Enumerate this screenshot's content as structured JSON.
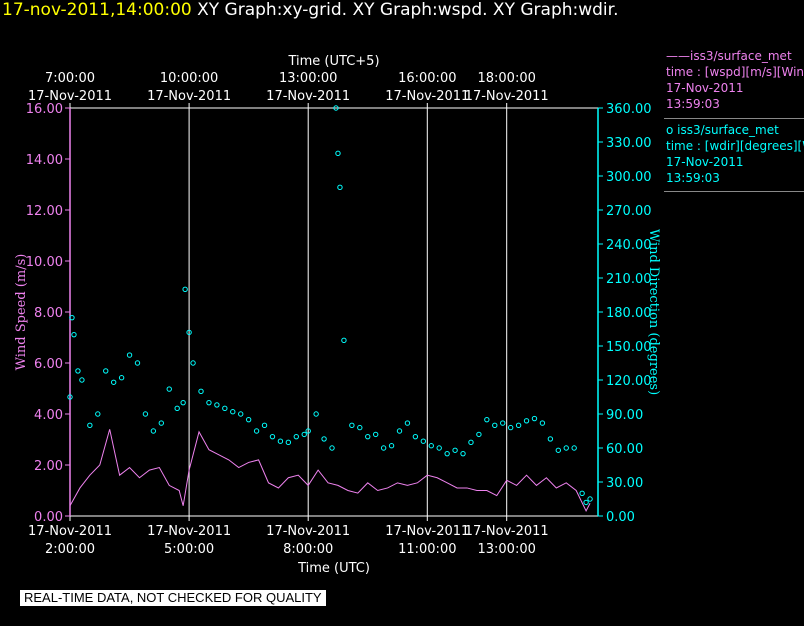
{
  "header": {
    "timestamp": "17-nov-2011,14:00:00",
    "graphs": "XY Graph:xy-grid.  XY Graph:wspd.  XY Graph:wdir."
  },
  "legend": {
    "wspd": {
      "symbol": "——",
      "name": "iss3/surface_met",
      "variable": "time : [wspd][m/s][Wind",
      "date": "17-Nov-2011",
      "time": "13:59:03"
    },
    "wdir": {
      "symbol": "o",
      "name": "iss3/surface_met",
      "variable": "time : [wdir][degrees][W",
      "date": "17-Nov-2011",
      "time": "13:59:03"
    }
  },
  "notice": "REAL-TIME DATA, NOT CHECKED FOR QUALITY",
  "colors": {
    "wspd": "#ee82ee",
    "wdir": "#00ffff",
    "grid": "#ffffff",
    "background": "#000000"
  },
  "chart_data": {
    "type": "line",
    "grid": true,
    "x_unit": "hours UTC on 17-Nov-2011",
    "xlim": [
      2.0,
      15.3
    ],
    "xlabel_bottom": "Time (UTC)",
    "xlabel_top": "Time (UTC+5)",
    "bottom_ticks": [
      {
        "x": 2,
        "date": "17-Nov-2011",
        "time": "2:00:00"
      },
      {
        "x": 5,
        "date": "17-Nov-2011",
        "time": "5:00:00"
      },
      {
        "x": 8,
        "date": "17-Nov-2011",
        "time": "8:00:00"
      },
      {
        "x": 11,
        "date": "17-Nov-2011",
        "time": "11:00:00"
      },
      {
        "x": 13,
        "date": "17-Nov-2011",
        "time": "13:00:00"
      }
    ],
    "top_ticks": [
      {
        "x": 2,
        "time": "7:00:00",
        "date": "17-Nov-2011"
      },
      {
        "x": 5,
        "time": "10:00:00",
        "date": "17-Nov-2011"
      },
      {
        "x": 8,
        "time": "13:00:00",
        "date": "17-Nov-2011"
      },
      {
        "x": 11,
        "time": "16:00:00",
        "date": "17-Nov-2011"
      },
      {
        "x": 13,
        "time": "18:00:00",
        "date": "17-Nov-2011"
      }
    ],
    "y_left": {
      "label": "Wind Speed (m/s)",
      "lim": [
        0,
        16
      ],
      "ticks": [
        "0.00",
        "2.00",
        "4.00",
        "6.00",
        "8.00",
        "10.00",
        "12.00",
        "14.00",
        "16.00"
      ]
    },
    "y_right": {
      "label": "Wind Direction (degrees)",
      "lim": [
        0,
        360
      ],
      "ticks": [
        "0.00",
        "30.00",
        "60.00",
        "90.00",
        "120.00",
        "150.00",
        "180.00",
        "210.00",
        "240.00",
        "270.00",
        "300.00",
        "330.00",
        "360.00"
      ]
    },
    "series": [
      {
        "id": "wspd",
        "axis": "left",
        "style": "line",
        "x": [
          2.0,
          2.25,
          2.5,
          2.75,
          3.0,
          3.25,
          3.5,
          3.75,
          4.0,
          4.25,
          4.5,
          4.75,
          4.85,
          5.0,
          5.25,
          5.5,
          5.75,
          6.0,
          6.25,
          6.5,
          6.75,
          7.0,
          7.25,
          7.5,
          7.75,
          8.0,
          8.25,
          8.5,
          8.75,
          9.0,
          9.25,
          9.5,
          9.75,
          10.0,
          10.25,
          10.5,
          10.75,
          11.0,
          11.25,
          11.5,
          11.75,
          12.0,
          12.25,
          12.5,
          12.75,
          13.0,
          13.25,
          13.5,
          13.75,
          14.0,
          14.25,
          14.5,
          14.75,
          15.0,
          15.1
        ],
        "y": [
          0.4,
          1.1,
          1.6,
          2.0,
          3.4,
          1.6,
          1.9,
          1.5,
          1.8,
          1.9,
          1.2,
          1.0,
          0.4,
          1.8,
          3.3,
          2.6,
          2.4,
          2.2,
          1.9,
          2.1,
          2.2,
          1.3,
          1.1,
          1.5,
          1.6,
          1.2,
          1.8,
          1.3,
          1.2,
          1.0,
          0.9,
          1.3,
          1.0,
          1.1,
          1.3,
          1.2,
          1.3,
          1.6,
          1.5,
          1.3,
          1.1,
          1.1,
          1.0,
          1.0,
          0.8,
          1.4,
          1.2,
          1.6,
          1.2,
          1.5,
          1.1,
          1.3,
          1.0,
          0.2,
          0.5
        ]
      },
      {
        "id": "wdir",
        "axis": "right",
        "style": "scatter",
        "x": [
          2.0,
          2.05,
          2.1,
          2.2,
          2.3,
          2.5,
          2.7,
          2.9,
          3.1,
          3.3,
          3.5,
          3.7,
          3.9,
          4.1,
          4.3,
          4.5,
          4.7,
          4.85,
          4.9,
          5.0,
          5.1,
          5.3,
          5.5,
          5.7,
          5.9,
          6.1,
          6.3,
          6.5,
          6.7,
          6.9,
          7.1,
          7.3,
          7.5,
          7.7,
          7.9,
          8.0,
          8.2,
          8.4,
          8.6,
          8.7,
          8.75,
          8.8,
          8.9,
          9.1,
          9.3,
          9.5,
          9.7,
          9.9,
          10.1,
          10.3,
          10.5,
          10.7,
          10.9,
          11.1,
          11.3,
          11.5,
          11.7,
          11.9,
          12.1,
          12.3,
          12.5,
          12.7,
          12.9,
          13.1,
          13.3,
          13.5,
          13.7,
          13.9,
          14.1,
          14.3,
          14.5,
          14.7,
          14.9,
          15.0,
          15.1
        ],
        "y": [
          105,
          175,
          160,
          128,
          120,
          80,
          90,
          128,
          118,
          122,
          142,
          135,
          90,
          75,
          82,
          112,
          95,
          100,
          200,
          162,
          135,
          110,
          100,
          98,
          95,
          92,
          90,
          85,
          75,
          80,
          70,
          66,
          65,
          70,
          72,
          75,
          90,
          68,
          60,
          360,
          320,
          290,
          155,
          80,
          78,
          70,
          72,
          60,
          62,
          75,
          82,
          70,
          66,
          62,
          60,
          55,
          58,
          55,
          65,
          72,
          85,
          80,
          82,
          78,
          80,
          84,
          86,
          82,
          68,
          58,
          60,
          60,
          20,
          12,
          15
        ]
      }
    ]
  }
}
